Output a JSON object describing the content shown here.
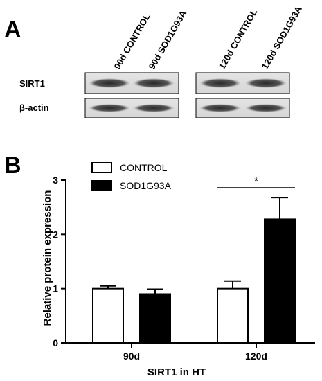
{
  "panel_a": {
    "label": "A",
    "lanes": [
      "90d CONTROL",
      "90d SOD1G93A",
      "120d CONTROL",
      "120d SOD1G93A"
    ],
    "rows": [
      "SIRT1",
      "β-actin"
    ]
  },
  "panel_b": {
    "label": "B"
  },
  "chart_data": {
    "type": "bar",
    "categories": [
      "90d",
      "120d"
    ],
    "series": [
      {
        "name": "CONTROL",
        "values": [
          1.0,
          1.0
        ],
        "errors": [
          0.05,
          0.14
        ],
        "fill": "#ffffff"
      },
      {
        "name": "SOD1G93A",
        "values": [
          0.9,
          2.28
        ],
        "errors": [
          0.09,
          0.4
        ],
        "fill": "#000000"
      }
    ],
    "xlabel": "SIRT1 in HT",
    "ylabel": "Relative protein expression",
    "ylim": [
      0,
      3
    ],
    "yticks": [
      0,
      1,
      2,
      3
    ],
    "legend": "top-left",
    "grid": false,
    "significance": [
      {
        "category": "120d",
        "label": "*"
      }
    ]
  }
}
